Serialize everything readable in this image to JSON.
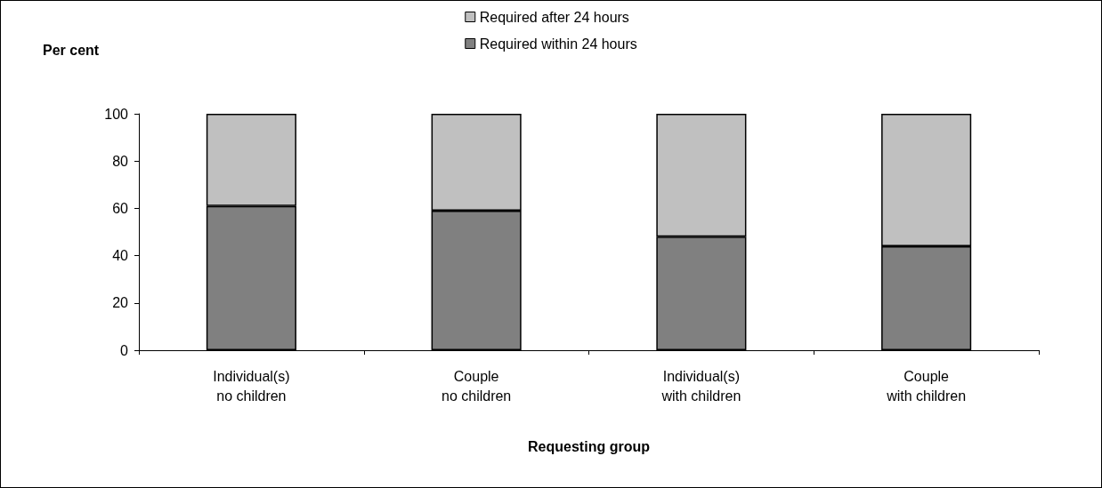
{
  "chart_data": {
    "type": "bar",
    "stacked": true,
    "xlabel": "Requesting group",
    "ylabel": "Per cent",
    "categories": [
      "Individual(s)\nno children",
      "Couple\nno children",
      "Individual(s)\nwith children",
      "Couple\nwith children"
    ],
    "series": [
      {
        "name": "Required within 24 hours",
        "color": "#808080",
        "values": [
          61,
          59,
          48,
          44
        ]
      },
      {
        "name": "Required after 24 hours",
        "color": "#c0c0c0",
        "values": [
          39,
          41,
          52,
          56
        ]
      }
    ],
    "ylim": [
      0,
      100
    ],
    "yticks": [
      0,
      20,
      40,
      60,
      80,
      100
    ],
    "grid": false,
    "legend": "top"
  }
}
